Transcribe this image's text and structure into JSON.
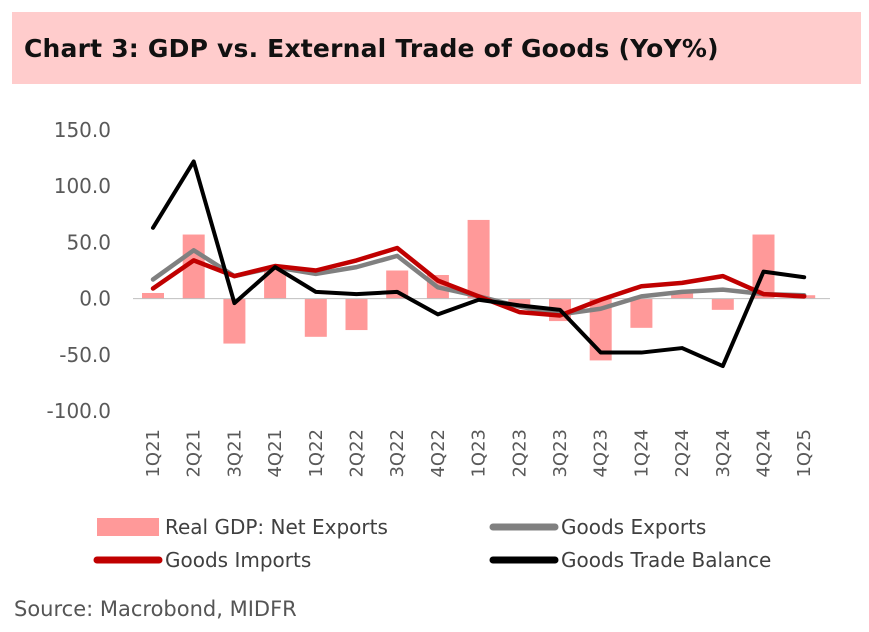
{
  "title": "Chart 3: GDP vs. External Trade of Goods (YoY%)",
  "source": "Source: Macrobond, MIDFR",
  "colors": {
    "net_exports": "#ff9999",
    "goods_exports": "#808080",
    "goods_imports": "#c00000",
    "trade_balance": "#000000",
    "title_bg": "#ffcccc"
  },
  "chart_data": {
    "type": "bar+line",
    "title": "Chart 3: GDP vs. External Trade of Goods (YoY%)",
    "xlabel": "",
    "ylabel": "",
    "ylim": [
      -100,
      150
    ],
    "yticks": [
      150,
      100,
      50,
      0,
      -50,
      -100
    ],
    "ytick_labels": [
      "150.0",
      "100.0",
      "50.0",
      "0.0",
      "-50.0",
      "-100.0"
    ],
    "grid": false,
    "legend_position": "bottom",
    "categories": [
      "1Q21",
      "2Q21",
      "3Q21",
      "4Q21",
      "1Q22",
      "2Q22",
      "3Q22",
      "4Q22",
      "1Q23",
      "2Q23",
      "3Q23",
      "4Q23",
      "1Q24",
      "2Q24",
      "3Q24",
      "4Q24",
      "1Q25"
    ],
    "series": [
      {
        "name": "Real GDP: Net Exports",
        "type": "bar",
        "values": [
          5,
          57,
          -40,
          28,
          -34,
          -28,
          25,
          21,
          70,
          -8,
          -20,
          -55,
          -26,
          5,
          -10,
          57,
          3
        ]
      },
      {
        "name": "Goods Exports",
        "type": "line",
        "values": [
          17,
          43,
          20,
          28,
          22,
          28,
          38,
          10,
          2,
          -7,
          -14,
          -9,
          2,
          6,
          8,
          4,
          3
        ]
      },
      {
        "name": "Goods Imports",
        "type": "line",
        "values": [
          9,
          34,
          20,
          29,
          25,
          34,
          45,
          16,
          2,
          -12,
          -15,
          -1,
          11,
          14,
          20,
          4,
          2
        ]
      },
      {
        "name": "Goods Trade Balance",
        "type": "line",
        "values": [
          63,
          122,
          -4,
          28,
          6,
          4,
          6,
          -14,
          -1,
          -6,
          -10,
          -48,
          -48,
          -44,
          -60,
          24,
          19
        ]
      }
    ]
  }
}
